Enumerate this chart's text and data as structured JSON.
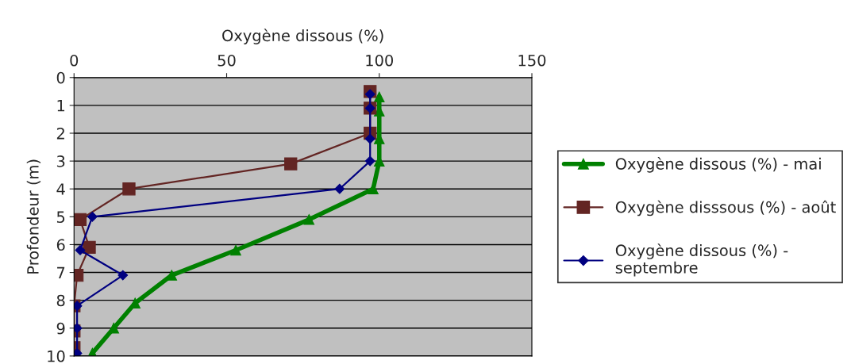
{
  "chart_data": {
    "type": "line",
    "xlabel": "Oxygène dissous (%)",
    "ylabel": "Profondeur (m)",
    "xlim": [
      0,
      150
    ],
    "xticks": [
      0,
      50,
      100,
      150
    ],
    "ylim": [
      10,
      0
    ],
    "yticks": [
      0,
      1,
      2,
      3,
      4,
      5,
      6,
      7,
      8,
      9,
      10
    ],
    "grid": "y",
    "legend": "right",
    "line_style": "solid",
    "series": [
      {
        "name": "Oxygène dissous (%) - mai",
        "color": "#008000",
        "marker": "triangle",
        "x": [
          100,
          100,
          100,
          100,
          98,
          77,
          53,
          32,
          20,
          13,
          6
        ],
        "values": [
          0.7,
          1.2,
          2.2,
          3.0,
          4.0,
          5.1,
          6.2,
          7.1,
          8.1,
          9.0,
          9.9
        ]
      },
      {
        "name": "Oxygène disssous (%) - août",
        "color": "#632523",
        "marker": "square",
        "x": [
          97,
          97,
          97,
          71,
          18,
          2,
          5,
          1,
          0,
          0,
          0
        ],
        "values": [
          0.5,
          1.1,
          2.0,
          3.1,
          4.0,
          5.1,
          6.1,
          7.1,
          8.2,
          9.1,
          9.7
        ]
      },
      {
        "name": "Oxygène dissous (%) - septembre",
        "color": "#000080",
        "marker": "diamond",
        "x": [
          97,
          97,
          97,
          97,
          87,
          6,
          2,
          16,
          1,
          1,
          1
        ],
        "values": [
          0.6,
          1.1,
          2.2,
          3.0,
          4.0,
          5.0,
          6.2,
          7.1,
          8.2,
          9.0,
          9.9
        ]
      }
    ]
  }
}
